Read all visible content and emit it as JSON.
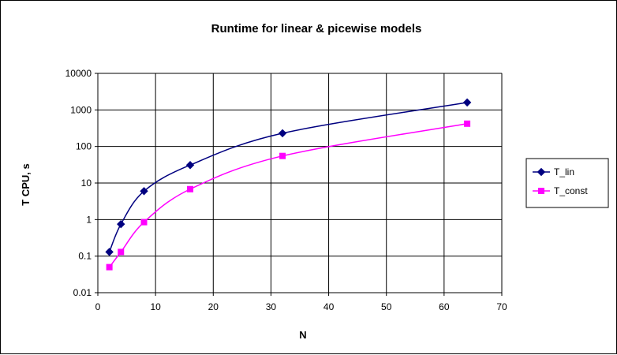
{
  "chart_data": {
    "type": "line",
    "title": "Runtime for linear & picewise models",
    "xlabel": "N",
    "ylabel": "T CPU, s",
    "xlim": [
      0,
      70
    ],
    "ylim": [
      0.01,
      10000
    ],
    "yscale": "log",
    "x_ticks": [
      "0",
      "10",
      "20",
      "30",
      "40",
      "50",
      "60",
      "70"
    ],
    "y_ticks": [
      "0.01",
      "0.1",
      "1",
      "10",
      "100",
      "1000",
      "10000"
    ],
    "grid": true,
    "legend_position": "right",
    "series": [
      {
        "name": "T_lin",
        "color": "#000080",
        "marker": "diamond",
        "x": [
          2,
          4,
          8,
          16,
          32,
          64
        ],
        "y": [
          0.13,
          0.75,
          6,
          31,
          230,
          1600
        ]
      },
      {
        "name": "T_const",
        "color": "#FF00FF",
        "marker": "square",
        "x": [
          2,
          4,
          8,
          16,
          32,
          64
        ],
        "y": [
          0.05,
          0.13,
          0.85,
          6.8,
          55,
          420
        ]
      }
    ]
  }
}
